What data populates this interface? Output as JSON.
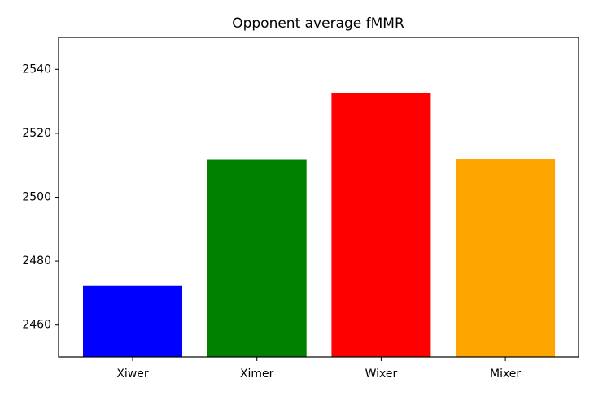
{
  "chart_data": {
    "type": "bar",
    "title": "Opponent average fMMR",
    "categories": [
      "Xiwer",
      "Ximer",
      "Wixer",
      "Mixer"
    ],
    "values": [
      2472.2,
      2511.7,
      2532.7,
      2511.9
    ],
    "colors": [
      "#0000ff",
      "#008000",
      "#ff0000",
      "#ffa500"
    ],
    "ylim": [
      2450,
      2550
    ],
    "yticks": [
      2460,
      2480,
      2500,
      2520,
      2540
    ],
    "grid": false
  }
}
